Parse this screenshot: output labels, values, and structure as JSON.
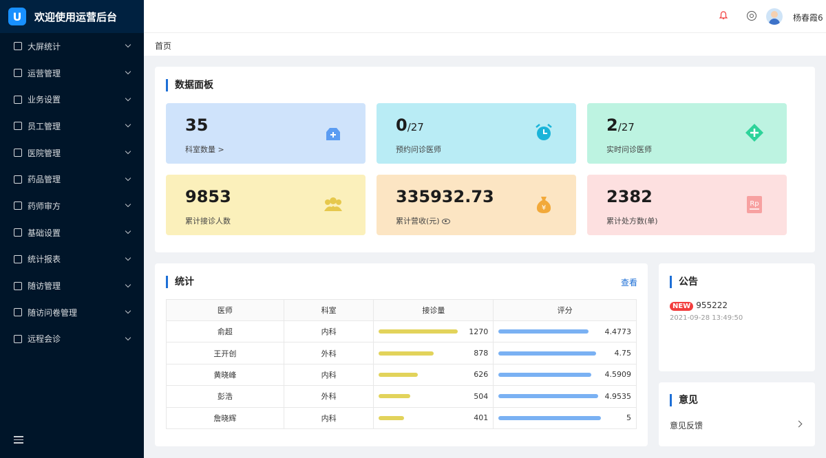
{
  "app": {
    "title": "欢迎使用运营后台",
    "logo_letter": "U"
  },
  "sidebar": {
    "items": [
      {
        "label": "大屏统计"
      },
      {
        "label": "运营管理"
      },
      {
        "label": "业务设置"
      },
      {
        "label": "员工管理"
      },
      {
        "label": "医院管理"
      },
      {
        "label": "药品管理"
      },
      {
        "label": "药师审方"
      },
      {
        "label": "基础设置"
      },
      {
        "label": "统计报表"
      },
      {
        "label": "随访管理"
      },
      {
        "label": "随访问卷管理"
      },
      {
        "label": "远程会诊"
      }
    ]
  },
  "header": {
    "username": "杨春霞6"
  },
  "breadcrumb": {
    "home": "首页"
  },
  "dashboard": {
    "title": "数据面板",
    "cards": [
      {
        "value": "35",
        "suffix": "",
        "label": "科室数量 >",
        "bg": "#cfe3fb",
        "icon": "medical-bag-icon",
        "icon_color": "#5b9cf2"
      },
      {
        "value": "0",
        "suffix": "/27",
        "label": "预约问诊医师",
        "bg": "#b9ecf5",
        "icon": "alarm-clock-icon",
        "icon_color": "#1ab4d9"
      },
      {
        "value": "2",
        "suffix": "/27",
        "label": "实时问诊医师",
        "bg": "#bdf3e1",
        "icon": "plus-diamond-icon",
        "icon_color": "#2ed39a"
      },
      {
        "value": "9853",
        "suffix": "",
        "label": "累计接诊人数",
        "bg": "#fbf0bb",
        "icon": "people-group-icon",
        "icon_color": "#e6c84c"
      },
      {
        "value": "335932.73",
        "suffix": "",
        "label": "累计营收(元)",
        "bg": "#fce5c3",
        "icon": "money-bag-icon",
        "icon_color": "#f2a93a"
      },
      {
        "value": "2382",
        "suffix": "",
        "label": "累计处方数(单)",
        "bg": "#fde0e0",
        "icon": "rx-prescription-icon",
        "icon_color": "#f7a1a1"
      }
    ]
  },
  "stats": {
    "title": "统计",
    "view_link": "查看",
    "columns": [
      "医师",
      "科室",
      "接诊量",
      "评分"
    ],
    "rows": [
      {
        "doctor": "俞超",
        "dept": "内科",
        "visits": 1270,
        "score": 4.4773
      },
      {
        "doctor": "王开创",
        "dept": "外科",
        "visits": 878,
        "score": 4.75
      },
      {
        "doctor": "黄晓峰",
        "dept": "内科",
        "visits": 626,
        "score": 4.5909
      },
      {
        "doctor": "彭浩",
        "dept": "外科",
        "visits": 504,
        "score": 4.9535
      },
      {
        "doctor": "詹晓辉",
        "dept": "内科",
        "visits": 401,
        "score": 5
      }
    ],
    "visit_bar_color": "#e2d35b",
    "score_bar_color": "#7ab1f3"
  },
  "notice": {
    "title": "公告",
    "badge": "NEW",
    "text": "955222",
    "time": "2021-09-28 13:49:50"
  },
  "feedback": {
    "title": "意见",
    "item": "意见反馈"
  }
}
